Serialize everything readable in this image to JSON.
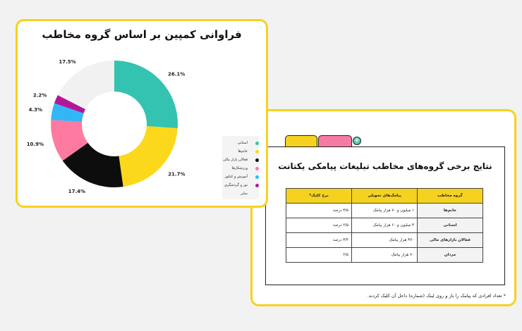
{
  "left_card": {
    "title": "فراوانی کمپین بر اساس گروه مخاطب",
    "legend": [
      {
        "label": "استانی",
        "color": "#33c3b0"
      },
      {
        "label": "خانم‌ها",
        "color": "#fbd81b"
      },
      {
        "label": "فعالان بازار مالی",
        "color": "#0d0d0d"
      },
      {
        "label": "ورزشکارها",
        "color": "#ff7aa0"
      },
      {
        "label": "آموزش و کنکور",
        "color": "#33b6f5"
      },
      {
        "label": "تور و گردشگری",
        "color": "#b2179a"
      },
      {
        "label": "سایر",
        "color": "#f1f1f1"
      }
    ]
  },
  "chart_data": {
    "type": "pie",
    "title": "فراوانی کمپین بر اساس گروه مخاطب",
    "donut": true,
    "categories": [
      "استانی",
      "خانم‌ها",
      "فعالان بازار مالی",
      "ورزشکارها",
      "آموزش و کنکور",
      "تور و گردشگری",
      "سایر"
    ],
    "values": [
      26.1,
      21.7,
      17.4,
      10.9,
      4.3,
      2.2,
      17.5
    ],
    "labels": [
      "26.1%",
      "21.7%",
      "17.4%",
      "10.9%",
      "4.3%",
      "2.2%",
      "17.5%"
    ],
    "colors": [
      "#33c3b0",
      "#fbd81b",
      "#0d0d0d",
      "#ff7aa0",
      "#33b6f5",
      "#b2179a",
      "#f1f1f1"
    ],
    "legend_position": "bottom-right"
  },
  "right_card": {
    "title": "نتایج برخی گروه‌های مخاطب تبلیغات پیامکی یکتانت",
    "table": {
      "headers": [
        "گروه مخاطب",
        "پیامک‌های تحویلی",
        "نرخ کلیک*"
      ],
      "rows": [
        [
          "خانم‌ها",
          "۱ میلیون و ۷۰ هزار پیامک",
          "۳/۵ درصد"
        ],
        [
          "استانی",
          "۳ میلیون و ۶۰ هزار پیامک",
          "۲/۵ درصد"
        ],
        [
          "فعالان بازارهای مالی",
          "۳۷۰ هزار پیامک",
          "۳/۴ درصد"
        ],
        [
          "مردان",
          "۷۰ هزار پیامک",
          "۲/۵"
        ]
      ]
    },
    "footnote": "* تعداد افرادی که پیامک را باز و روی لینک (شماره) داخل آن کلیک کردند."
  }
}
